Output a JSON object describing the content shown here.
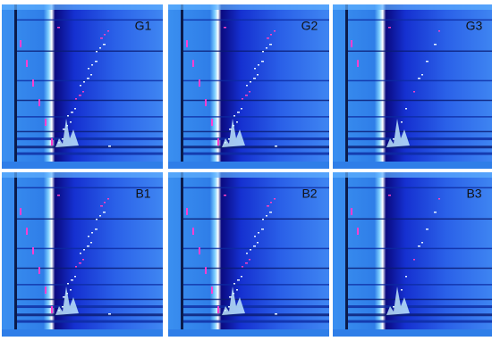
{
  "panels": [
    {
      "label": "G1"
    },
    {
      "label": "G2"
    },
    {
      "label": "G3"
    },
    {
      "label": "B1"
    },
    {
      "label": "B2"
    },
    {
      "label": "B3"
    }
  ]
}
